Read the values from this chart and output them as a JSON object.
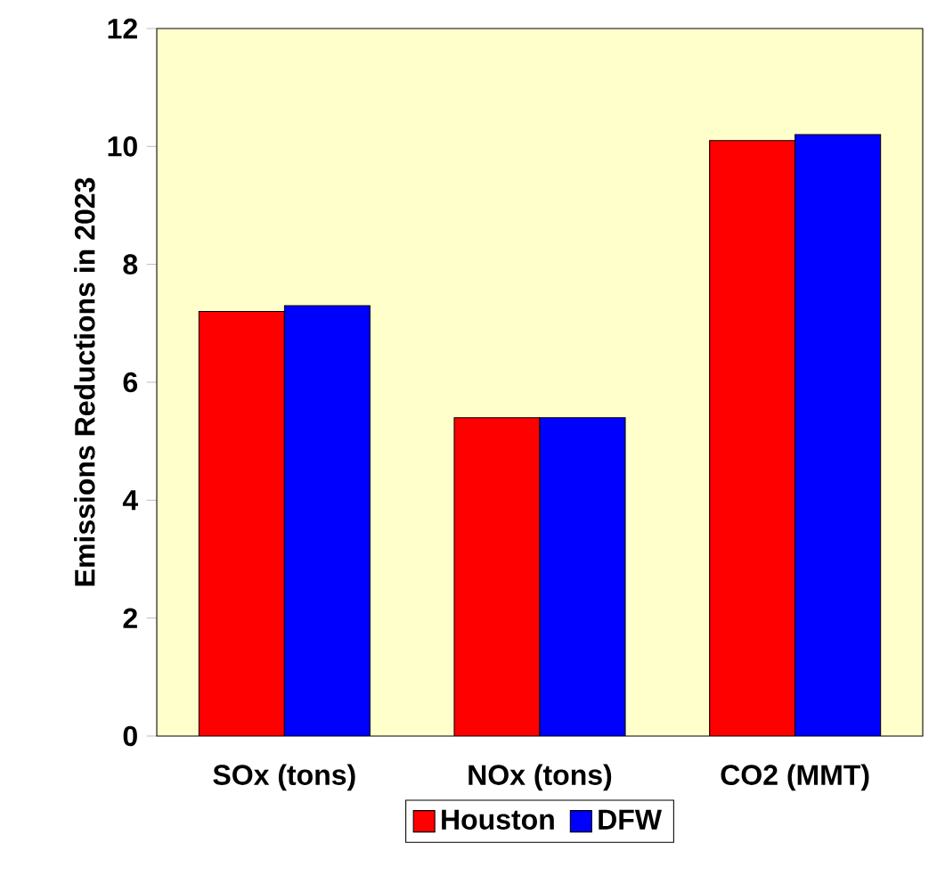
{
  "chart_data": {
    "type": "bar",
    "ylabel": "Emissions Reductions in 2023",
    "categories": [
      "SOx (tons)",
      "NOx (tons)",
      "CO2 (MMT)"
    ],
    "series": [
      {
        "name": "Houston",
        "color": "#ff0000",
        "values": [
          7.2,
          5.4,
          10.1
        ]
      },
      {
        "name": "DFW",
        "color": "#0000ff",
        "values": [
          7.3,
          5.4,
          10.2
        ]
      }
    ],
    "ylim": [
      0,
      12
    ],
    "yticks": [
      0,
      2,
      4,
      6,
      8,
      10,
      12
    ],
    "legend": "bottom"
  }
}
